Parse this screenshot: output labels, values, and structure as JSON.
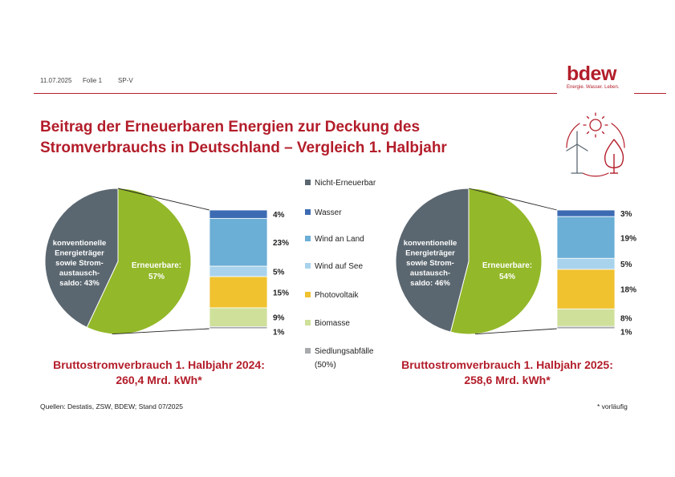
{
  "header": {
    "date": "11.07.2025",
    "slide": "Folie 1",
    "code": "SP-V",
    "logo_text": "bdew",
    "logo_tagline": "Energie. Wasser. Leben."
  },
  "title": {
    "line1": "Beitrag der Erneuerbaren Energien zur Deckung des",
    "line2": "Stromverbrauchs in Deutschland – Vergleich 1. Halbjahr"
  },
  "colors": {
    "brand": "#b31d2a",
    "conventional": "#5b6770",
    "renewable": "#93b829"
  },
  "chart_data": [
    {
      "type": "pie",
      "title": "Bruttostromverbrauch 1. Halbjahr 2024:",
      "subtitle": "260,4 Mrd. kWh*",
      "slices": [
        {
          "label": "Erneuerbare:",
          "value_label": "57%",
          "value": 57,
          "color": "#93b829"
        },
        {
          "label": "konventionelle|Energieträger|sowie Strom-|austausch-|saldo: 43%",
          "value": 43,
          "color": "#5b6770"
        }
      ],
      "breakdown": {
        "type": "stacked-bar",
        "series": [
          {
            "name": "Wasser",
            "value": 4,
            "label": "4%",
            "color": "#3d6bb3"
          },
          {
            "name": "Wind an Land",
            "value": 23,
            "label": "23%",
            "color": "#6baed6"
          },
          {
            "name": "Wind auf See",
            "value": 5,
            "label": "5%",
            "color": "#a9d3ec"
          },
          {
            "name": "Photovoltaik",
            "value": 15,
            "label": "15%",
            "color": "#f0c230"
          },
          {
            "name": "Biomasse",
            "value": 9,
            "label": "9%",
            "color": "#cfe09a"
          },
          {
            "name": "Siedlungsabfälle (50%)",
            "value": 1,
            "label": "1%",
            "color": "#a8aaad"
          }
        ]
      }
    },
    {
      "type": "pie",
      "title": "Bruttostromverbrauch 1. Halbjahr 2025:",
      "subtitle": "258,6 Mrd. kWh*",
      "slices": [
        {
          "label": "Erneuerbare:",
          "value_label": "54%",
          "value": 54,
          "color": "#93b829"
        },
        {
          "label": "konventionelle|Energieträger|sowie Strom-|austausch-|saldo: 46%",
          "value": 46,
          "color": "#5b6770"
        }
      ],
      "breakdown": {
        "type": "stacked-bar",
        "series": [
          {
            "name": "Wasser",
            "value": 3,
            "label": "3%",
            "color": "#3d6bb3"
          },
          {
            "name": "Wind an Land",
            "value": 19,
            "label": "19%",
            "color": "#6baed6"
          },
          {
            "name": "Wind auf See",
            "value": 5,
            "label": "5%",
            "color": "#a9d3ec"
          },
          {
            "name": "Photovoltaik",
            "value": 18,
            "label": "18%",
            "color": "#f0c230"
          },
          {
            "name": "Biomasse",
            "value": 8,
            "label": "8%",
            "color": "#cfe09a"
          },
          {
            "name": "Siedlungsabfälle (50%)",
            "value": 1,
            "label": "1%",
            "color": "#a8aaad"
          }
        ]
      }
    }
  ],
  "legend": [
    {
      "label": "Nicht-Erneuerbar",
      "color": "#5b6770"
    },
    {
      "label": "Wasser",
      "color": "#3d6bb3"
    },
    {
      "label": "Wind an Land",
      "color": "#6baed6"
    },
    {
      "label": "Wind auf See",
      "color": "#a9d3ec"
    },
    {
      "label": "Photovoltaik",
      "color": "#f0c230"
    },
    {
      "label": "Biomasse",
      "color": "#cfe09a"
    },
    {
      "label": "Siedlungsabfälle",
      "label2": "(50%)",
      "color": "#a8aaad"
    }
  ],
  "footer": {
    "source": "Quellen: Destatis, ZSW, BDEW; Stand 07/2025",
    "note": "* vorläufig"
  },
  "icons": [
    "sun-icon",
    "wind-turbine-icon",
    "flame-icon",
    "cycle-arrows-icon"
  ]
}
